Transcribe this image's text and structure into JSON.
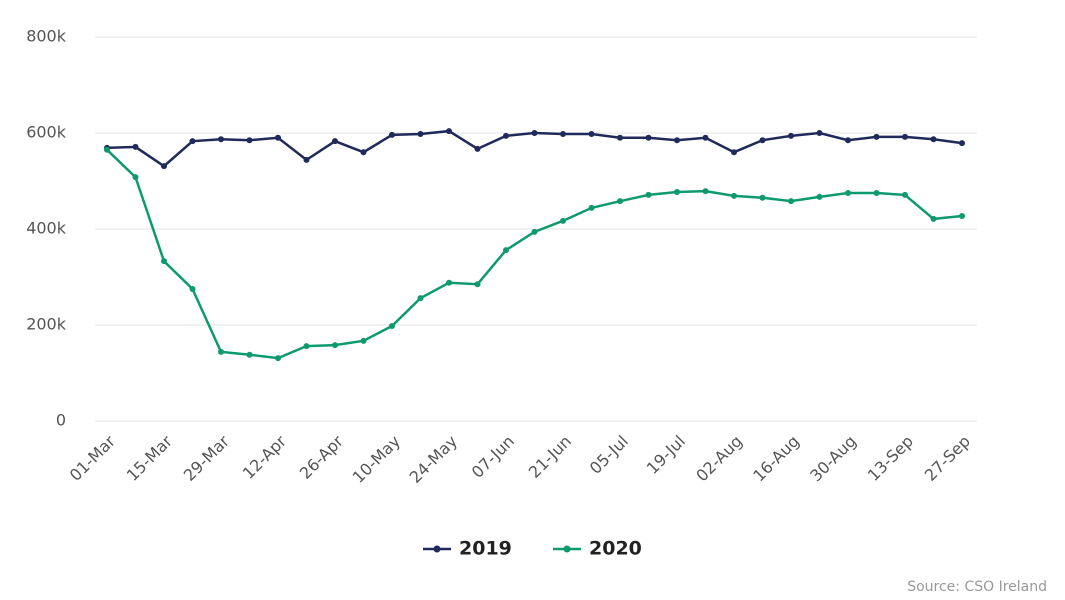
{
  "chart_data": {
    "type": "line",
    "categories": [
      "01-Mar",
      null,
      "15-Mar",
      null,
      "29-Mar",
      null,
      "12-Apr",
      null,
      "26-Apr",
      null,
      "10-May",
      null,
      "24-May",
      null,
      "07-Jun",
      null,
      "21-Jun",
      null,
      "05-Jul",
      null,
      "19-Jul",
      null,
      "02-Aug",
      null,
      "16-Aug",
      null,
      "30-Aug",
      null,
      "13-Sep",
      null,
      "27-Sep"
    ],
    "series": [
      {
        "name": "2019",
        "color": "#1f2a5a",
        "values": [
          569000,
          571000,
          531000,
          583000,
          587000,
          585000,
          590000,
          544000,
          583000,
          560000,
          596000,
          598000,
          604000,
          567000,
          594000,
          600000,
          598000,
          598000,
          590000,
          590000,
          585000,
          590000,
          560000,
          585000,
          594000,
          600000,
          585000,
          592000,
          592000,
          587000,
          579000
        ]
      },
      {
        "name": "2020",
        "color": "#0e9a6e",
        "values": [
          565000,
          508000,
          333000,
          275000,
          144000,
          138000,
          131000,
          156000,
          158000,
          167000,
          198000,
          256000,
          288000,
          285000,
          356000,
          394000,
          417000,
          444000,
          458000,
          471000,
          477000,
          479000,
          469000,
          465000,
          458000,
          467000,
          475000,
          475000,
          471000,
          421000,
          427000
        ]
      }
    ],
    "ylim": [
      0,
      800000
    ],
    "yticks": [
      0,
      {
        "value": 200000,
        "label": "200k"
      },
      {
        "value": 400000,
        "label": "400k"
      },
      {
        "value": 600000,
        "label": "600k"
      },
      {
        "value": 800000,
        "label": "800k"
      }
    ],
    "grid": true,
    "legend": "bottom",
    "source": "Source: CSO Ireland"
  }
}
